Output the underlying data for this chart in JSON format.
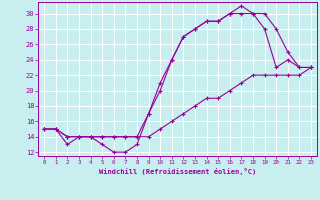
{
  "xlabel": "Windchill (Refroidissement éolien,°C)",
  "bg_color": "#c8eef0",
  "line_color": "#990099",
  "grid_color": "#ffffff",
  "xlim": [
    -0.5,
    23.5
  ],
  "ylim": [
    11.5,
    31.5
  ],
  "yticks": [
    12,
    14,
    16,
    18,
    20,
    22,
    24,
    26,
    28,
    30
  ],
  "xticks": [
    0,
    1,
    2,
    3,
    4,
    5,
    6,
    7,
    8,
    9,
    10,
    11,
    12,
    13,
    14,
    15,
    16,
    17,
    18,
    19,
    20,
    21,
    22,
    23
  ],
  "line1_x": [
    0,
    1,
    2,
    3,
    4,
    5,
    6,
    7,
    8,
    9,
    10,
    11,
    12,
    13,
    14,
    15,
    16,
    17,
    18,
    19,
    20,
    21,
    22,
    23
  ],
  "line1_y": [
    15,
    15,
    13,
    14,
    14,
    13,
    12,
    12,
    13,
    17,
    21,
    24,
    27,
    28,
    29,
    29,
    30,
    30,
    30,
    30,
    28,
    25,
    23,
    23
  ],
  "line2_x": [
    0,
    1,
    2,
    3,
    4,
    5,
    6,
    7,
    8,
    9,
    10,
    11,
    12,
    13,
    14,
    15,
    16,
    17,
    18,
    19,
    20,
    21,
    22,
    23
  ],
  "line2_y": [
    15,
    15,
    14,
    14,
    14,
    14,
    14,
    14,
    14,
    14,
    15,
    16,
    17,
    18,
    19,
    19,
    20,
    21,
    22,
    22,
    22,
    22,
    22,
    23
  ],
  "line3_x": [
    0,
    1,
    2,
    3,
    4,
    5,
    6,
    7,
    8,
    9,
    10,
    11,
    12,
    13,
    14,
    15,
    16,
    17,
    18,
    19,
    20,
    21,
    22,
    23
  ],
  "line3_y": [
    15,
    15,
    14,
    14,
    14,
    14,
    14,
    14,
    14,
    17,
    20,
    24,
    27,
    28,
    29,
    29,
    30,
    31,
    30,
    28,
    23,
    24,
    23,
    23
  ]
}
